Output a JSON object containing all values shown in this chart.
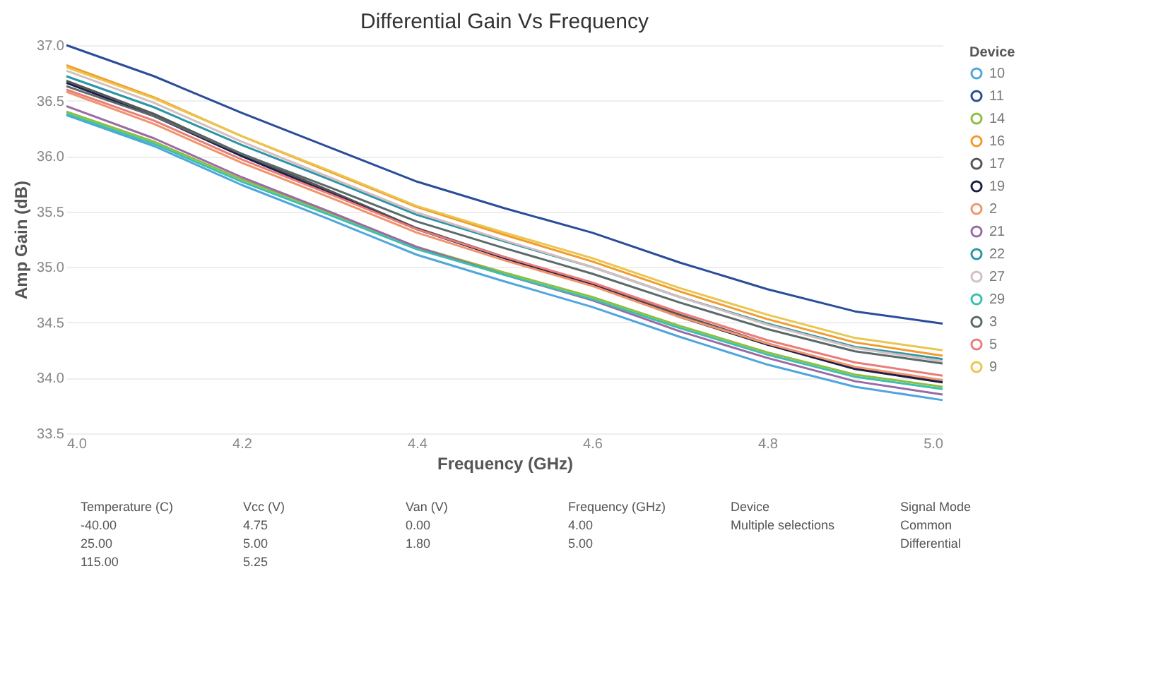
{
  "chart_data": [
    {
      "type": "line",
      "title": "Differential Gain Vs Frequency",
      "xlabel": "Frequency (GHz)",
      "ylabel": "Amp Gain (dB)",
      "legend_title": "Device",
      "legend": "right",
      "grid": "y",
      "marker": "none",
      "line_style": "solid",
      "x": [
        4.0,
        4.1,
        4.2,
        4.3,
        4.4,
        4.5,
        4.6,
        4.7,
        4.8,
        4.9,
        5.0
      ],
      "xlim": [
        4.0,
        5.0
      ],
      "xticks": [
        {
          "value": 4,
          "label": "4.0"
        },
        {
          "value": 4.2,
          "label": "4.2"
        },
        {
          "value": 4.4,
          "label": "4.4"
        },
        {
          "value": 4.6,
          "label": "4.6"
        },
        {
          "value": 4.8,
          "label": "4.8"
        },
        {
          "value": 5,
          "label": "5.0"
        }
      ],
      "ylim": [
        33.5,
        37.0
      ],
      "yticks": [
        33.5,
        {
          "value": 34,
          "label": "34.0"
        },
        34.5,
        {
          "value": 35,
          "label": "35.0"
        },
        35.5,
        {
          "value": 36,
          "label": "36.0"
        },
        36.5,
        {
          "value": 37,
          "label": "37.0"
        }
      ],
      "series": [
        {
          "name": "10",
          "color": "#4ea6dc",
          "values": [
            36.37,
            36.09,
            35.74,
            35.43,
            35.11,
            34.87,
            34.64,
            34.37,
            34.12,
            33.92,
            33.8
          ]
        },
        {
          "name": "11",
          "color": "#2a4d9a",
          "values": [
            37.0,
            36.72,
            36.39,
            36.08,
            35.77,
            35.53,
            35.31,
            35.04,
            34.8,
            34.6,
            34.49
          ]
        },
        {
          "name": "14",
          "color": "#8cbf3f",
          "values": [
            36.4,
            36.13,
            35.79,
            35.49,
            35.18,
            34.95,
            34.73,
            34.47,
            34.23,
            34.03,
            33.92
          ]
        },
        {
          "name": "16",
          "color": "#f29b2c",
          "values": [
            36.82,
            36.53,
            36.18,
            35.86,
            35.54,
            35.29,
            35.05,
            34.78,
            34.53,
            34.32,
            34.2
          ]
        },
        {
          "name": "17",
          "color": "#555555",
          "values": [
            36.68,
            36.38,
            36.02,
            35.69,
            35.35,
            35.09,
            34.85,
            34.57,
            34.31,
            34.09,
            33.97
          ]
        },
        {
          "name": "19",
          "color": "#1a1f4a",
          "values": [
            36.66,
            36.36,
            36.0,
            35.67,
            35.34,
            35.08,
            34.84,
            34.55,
            34.3,
            34.08,
            33.96
          ]
        },
        {
          "name": "2",
          "color": "#f0956a",
          "values": [
            36.58,
            36.29,
            35.94,
            35.63,
            35.31,
            35.06,
            34.83,
            34.55,
            34.31,
            34.1,
            33.98
          ]
        },
        {
          "name": "21",
          "color": "#9a6aa6",
          "values": [
            36.45,
            36.16,
            35.81,
            35.5,
            35.18,
            34.93,
            34.7,
            34.42,
            34.18,
            33.97,
            33.85
          ]
        },
        {
          "name": "22",
          "color": "#2c95a8",
          "values": [
            36.72,
            36.44,
            36.1,
            35.79,
            35.47,
            35.23,
            35.0,
            34.73,
            34.49,
            34.28,
            34.17
          ]
        },
        {
          "name": "27",
          "color": "#d4bfc0",
          "values": [
            36.77,
            36.48,
            36.13,
            35.81,
            35.49,
            35.24,
            35.0,
            34.73,
            34.48,
            34.27,
            34.15
          ]
        },
        {
          "name": "29",
          "color": "#3dbfae",
          "values": [
            36.38,
            36.11,
            35.77,
            35.47,
            35.16,
            34.93,
            34.71,
            34.45,
            34.21,
            34.01,
            33.9
          ]
        },
        {
          "name": "3",
          "color": "#5a6a68",
          "values": [
            36.63,
            36.36,
            36.02,
            35.72,
            35.41,
            35.17,
            34.94,
            34.68,
            34.44,
            34.24,
            34.13
          ]
        },
        {
          "name": "5",
          "color": "#ec7b7b",
          "values": [
            36.6,
            36.32,
            35.97,
            35.66,
            35.34,
            35.09,
            34.86,
            34.59,
            34.34,
            34.14,
            34.02
          ]
        },
        {
          "name": "9",
          "color": "#eac54f",
          "values": [
            36.8,
            36.52,
            36.18,
            35.87,
            35.55,
            35.31,
            35.08,
            34.81,
            34.57,
            34.36,
            34.25
          ]
        }
      ]
    },
    {
      "type": "other",
      "annotations": [
        "Temperature (C)",
        "-40.00",
        "25.00",
        "115.00",
        "Vcc (V)",
        "4.75",
        "5.00",
        "5.25",
        "Van (V)",
        "0.00",
        "1.80",
        "Frequency (GHz)",
        "4.00",
        "5.00",
        "Device",
        "Multiple selections",
        "Signal Mode",
        "Common",
        "Differential"
      ]
    }
  ]
}
